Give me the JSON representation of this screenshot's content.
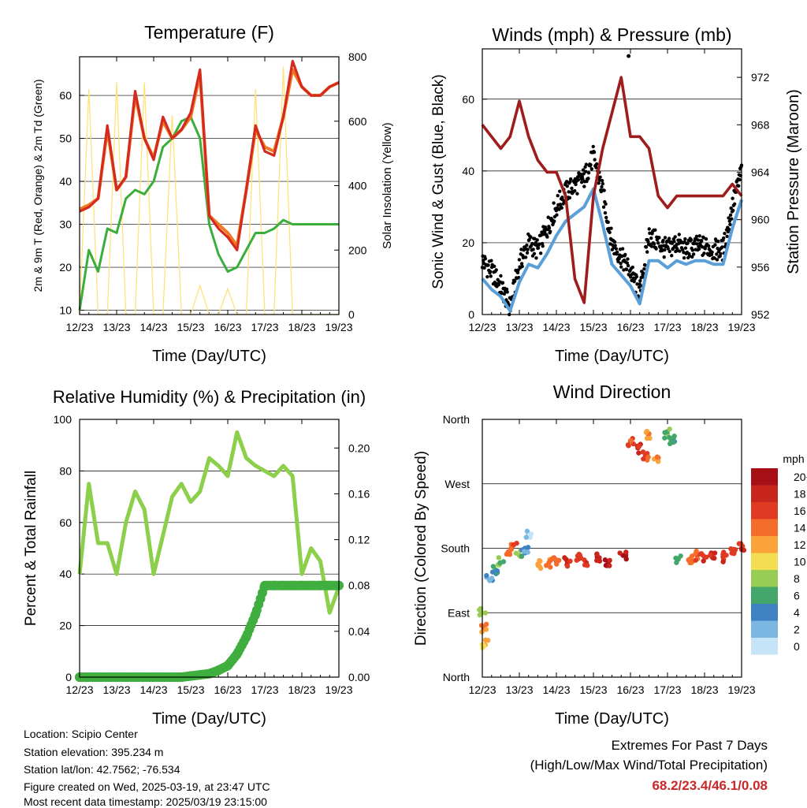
{
  "colors": {
    "t2m": "#d42a1f",
    "t9m": "#f07a22",
    "td": "#3aad3a",
    "solar": "#ffe27a",
    "wind": "#5a9fd8",
    "gust": "#000000",
    "pressure": "#9e1c1c",
    "rh": "#8ccf4a",
    "precip": "#3fae3f",
    "extreme_text": "#c82828"
  },
  "time_axis": {
    "labels": [
      "12/23",
      "13/23",
      "14/23",
      "15/23",
      "16/23",
      "17/23",
      "18/23",
      "19/23"
    ],
    "xlabel": "Time (Day/UTC)"
  },
  "chart_data": [
    {
      "type": "line",
      "title": "Temperature (F)",
      "xlabel": "Time (Day/UTC)",
      "ylabel": "2m & 9m T (Red, Orange) & 2m Td (Green)",
      "ylabel_right": "Solar Insolation (Yellow)",
      "x": [
        12,
        12.25,
        12.5,
        12.75,
        13,
        13.25,
        13.5,
        13.75,
        14,
        14.25,
        14.5,
        14.75,
        15,
        15.25,
        15.5,
        15.75,
        16,
        16.25,
        16.5,
        16.75,
        17,
        17.25,
        17.5,
        17.75,
        18,
        18.25,
        18.5,
        18.75,
        19
      ],
      "ylim": [
        9,
        69
      ],
      "y2lim": [
        0,
        800
      ],
      "yticks": [
        10,
        20,
        30,
        40,
        50,
        60
      ],
      "y2ticks": [
        0,
        200,
        400,
        600,
        800
      ],
      "series": [
        {
          "key": "t2m",
          "values": [
            33,
            34,
            36,
            53,
            38,
            41,
            61,
            50,
            45,
            55,
            50,
            52,
            56,
            66,
            32,
            29,
            27,
            24,
            38,
            53,
            47,
            46,
            55,
            68,
            62,
            60,
            60,
            62,
            63
          ]
        },
        {
          "key": "t9m",
          "values": [
            33.5,
            34.5,
            36,
            52,
            38,
            41,
            60,
            50,
            45.5,
            54,
            50,
            52,
            55,
            65,
            32,
            30,
            28,
            25,
            38,
            52,
            48,
            47,
            55,
            66,
            62,
            60,
            60,
            62,
            63
          ]
        },
        {
          "key": "td",
          "values": [
            10,
            24,
            19,
            29,
            28,
            36,
            38,
            37,
            40,
            48,
            50,
            54,
            55,
            50,
            30,
            23,
            19,
            20,
            24,
            28,
            28,
            29,
            31,
            30,
            30,
            30,
            30,
            30,
            30
          ]
        },
        {
          "key": "solar",
          "axis": "right",
          "values": [
            0,
            700,
            0,
            0,
            720,
            0,
            0,
            720,
            0,
            0,
            620,
            0,
            0,
            90,
            0,
            0,
            80,
            0,
            0,
            700,
            0,
            0,
            770,
            0,
            0,
            0,
            0,
            0,
            0
          ]
        }
      ]
    },
    {
      "type": "line",
      "title": "Winds (mph) & Pressure (mb)",
      "xlabel": "Time (Day/UTC)",
      "ylabel": "Sonic Wind & Gust (Blue, Black)",
      "ylabel_right": "Station Pressure (Maroon)",
      "x": [
        12,
        12.25,
        12.5,
        12.75,
        13,
        13.25,
        13.5,
        13.75,
        14,
        14.25,
        14.5,
        14.75,
        15,
        15.25,
        15.5,
        15.75,
        16,
        16.25,
        16.5,
        16.75,
        17,
        17.25,
        17.5,
        17.75,
        18,
        18.25,
        18.5,
        18.75,
        19
      ],
      "ylim": [
        0,
        74
      ],
      "y2lim": [
        952,
        974.4
      ],
      "yticks": [
        0,
        20,
        40,
        60
      ],
      "y2ticks": [
        952,
        956,
        960,
        964,
        968,
        972
      ],
      "series": [
        {
          "key": "gust",
          "values": [
            15,
            12,
            8,
            2,
            14,
            20,
            18,
            24,
            30,
            34,
            36,
            38,
            44,
            34,
            20,
            16,
            12,
            6,
            22,
            20,
            18,
            20,
            18,
            19,
            19,
            18,
            18,
            30,
            40
          ]
        },
        {
          "key": "wind",
          "values": [
            10,
            7,
            5,
            1,
            9,
            14,
            13,
            17,
            22,
            26,
            28,
            30,
            35,
            25,
            14,
            11,
            8,
            3,
            15,
            15,
            13,
            15,
            14,
            15,
            15,
            14,
            14,
            24,
            32
          ]
        },
        {
          "key": "pressure",
          "axis": "right",
          "values": [
            968,
            967,
            966,
            967,
            970,
            967,
            965,
            964,
            964,
            962,
            955,
            953,
            962,
            966,
            969,
            972,
            967,
            967,
            966,
            962,
            961,
            962,
            962,
            962,
            962,
            962,
            962,
            963,
            962
          ]
        }
      ],
      "extra_points": [
        {
          "x": 15.95,
          "y": 72
        }
      ]
    },
    {
      "type": "line",
      "title": "Relative Humidity (%) & Precipitation (in)",
      "xlabel": "Time (Day/UTC)",
      "ylabel": "Percent & Total Rainfall",
      "x": [
        12,
        12.25,
        12.5,
        12.75,
        13,
        13.25,
        13.5,
        13.75,
        14,
        14.25,
        14.5,
        14.75,
        15,
        15.25,
        15.5,
        15.75,
        16,
        16.25,
        16.5,
        16.75,
        17,
        17.25,
        17.5,
        17.75,
        18,
        18.25,
        18.5,
        18.75,
        19
      ],
      "ylim": [
        0,
        100
      ],
      "y2lim": [
        0,
        0.225
      ],
      "yticks": [
        0,
        20,
        40,
        60,
        80,
        100
      ],
      "y2ticks": [
        0.0,
        0.04,
        0.08,
        0.12,
        0.16,
        0.2
      ],
      "y2tick_labels": [
        "0.00",
        "0.04",
        "0.08",
        "0.12",
        "0.16",
        "0.20"
      ],
      "series": [
        {
          "key": "rh",
          "values": [
            40,
            75,
            52,
            52,
            40,
            60,
            72,
            65,
            40,
            55,
            70,
            75,
            68,
            72,
            85,
            82,
            78,
            95,
            85,
            82,
            80,
            78,
            82,
            78,
            40,
            50,
            45,
            25,
            35
          ]
        },
        {
          "key": "precip",
          "axis": "right",
          "values": [
            0,
            0,
            0,
            0,
            0,
            0,
            0,
            0,
            0,
            0,
            0,
            0,
            0.001,
            0.002,
            0.003,
            0.006,
            0.01,
            0.02,
            0.035,
            0.055,
            0.08,
            0.08,
            0.08,
            0.08,
            0.08,
            0.08,
            0.08,
            0.08,
            0.08
          ]
        }
      ]
    },
    {
      "type": "scatter",
      "title": "Wind Direction",
      "xlabel": "Time (Day/UTC)",
      "ylabel": "Direction (Colored By Speed)",
      "ylim": [
        0,
        360
      ],
      "ytick_values": [
        0,
        90,
        180,
        270,
        360
      ],
      "ytick_labels": [
        "North",
        "East",
        "South",
        "West",
        "North"
      ],
      "legend": {
        "title": "mph",
        "labels": [
          "20+",
          "18",
          "16",
          "14",
          "12",
          "10",
          "8",
          "6",
          "4",
          "2",
          "0"
        ],
        "colors": [
          "#a50f15",
          "#c8251d",
          "#e03a23",
          "#f46d2a",
          "#faa33a",
          "#f3dd52",
          "#97cc55",
          "#43a66a",
          "#3f82c4",
          "#7bb7e0",
          "#c6e4f7"
        ],
        "position": "right"
      },
      "points": [
        {
          "x": 12,
          "y": 90,
          "s": 10
        },
        {
          "x": 12.05,
          "y": 70,
          "s": 14
        },
        {
          "x": 12.08,
          "y": 45,
          "s": 12
        },
        {
          "x": 12.2,
          "y": 135,
          "s": 4
        },
        {
          "x": 12.35,
          "y": 150,
          "s": 6
        },
        {
          "x": 12.5,
          "y": 160,
          "s": 8
        },
        {
          "x": 12.7,
          "y": 175,
          "s": 14
        },
        {
          "x": 12.85,
          "y": 185,
          "s": 16
        },
        {
          "x": 13,
          "y": 170,
          "s": 8
        },
        {
          "x": 13.15,
          "y": 180,
          "s": 4
        },
        {
          "x": 13.25,
          "y": 200,
          "s": 2
        },
        {
          "x": 13.5,
          "y": 158,
          "s": 12
        },
        {
          "x": 13.8,
          "y": 160,
          "s": 14
        },
        {
          "x": 14,
          "y": 162,
          "s": 16
        },
        {
          "x": 14.3,
          "y": 160,
          "s": 18
        },
        {
          "x": 14.6,
          "y": 165,
          "s": 18
        },
        {
          "x": 14.8,
          "y": 160,
          "s": 18
        },
        {
          "x": 15.1,
          "y": 168,
          "s": 20
        },
        {
          "x": 15.4,
          "y": 160,
          "s": 20
        },
        {
          "x": 15.8,
          "y": 170,
          "s": 20
        },
        {
          "x": 16,
          "y": 330,
          "s": 16
        },
        {
          "x": 16.2,
          "y": 320,
          "s": 18
        },
        {
          "x": 16.4,
          "y": 310,
          "s": 16
        },
        {
          "x": 16.5,
          "y": 340,
          "s": 14
        },
        {
          "x": 16.7,
          "y": 305,
          "s": 14
        },
        {
          "x": 17,
          "y": 340,
          "s": 8
        },
        {
          "x": 17.1,
          "y": 330,
          "s": 6
        },
        {
          "x": 17.3,
          "y": 165,
          "s": 8
        },
        {
          "x": 17.6,
          "y": 165,
          "s": 14
        },
        {
          "x": 17.8,
          "y": 170,
          "s": 16
        },
        {
          "x": 18,
          "y": 168,
          "s": 18
        },
        {
          "x": 18.2,
          "y": 168,
          "s": 18
        },
        {
          "x": 18.5,
          "y": 168,
          "s": 18
        },
        {
          "x": 18.8,
          "y": 175,
          "s": 18
        },
        {
          "x": 19,
          "y": 180,
          "s": 18
        }
      ]
    }
  ],
  "info": {
    "location": "Location: Scipio Center",
    "elevation": "Station elevation: 395.234 m",
    "latlon": "Station lat/lon: 42.7562; -76.534",
    "created": "Figure created on Wed, 2025-03-19, at 23:47 UTC",
    "recent": "Most recent data timestamp: 2025/03/19 23:15:00"
  },
  "extremes": {
    "title": "Extremes For Past 7 Days",
    "subtitle": "(High/Low/Max Wind/Total Precipitation)",
    "values": "68.2/23.4/46.1/0.08"
  }
}
